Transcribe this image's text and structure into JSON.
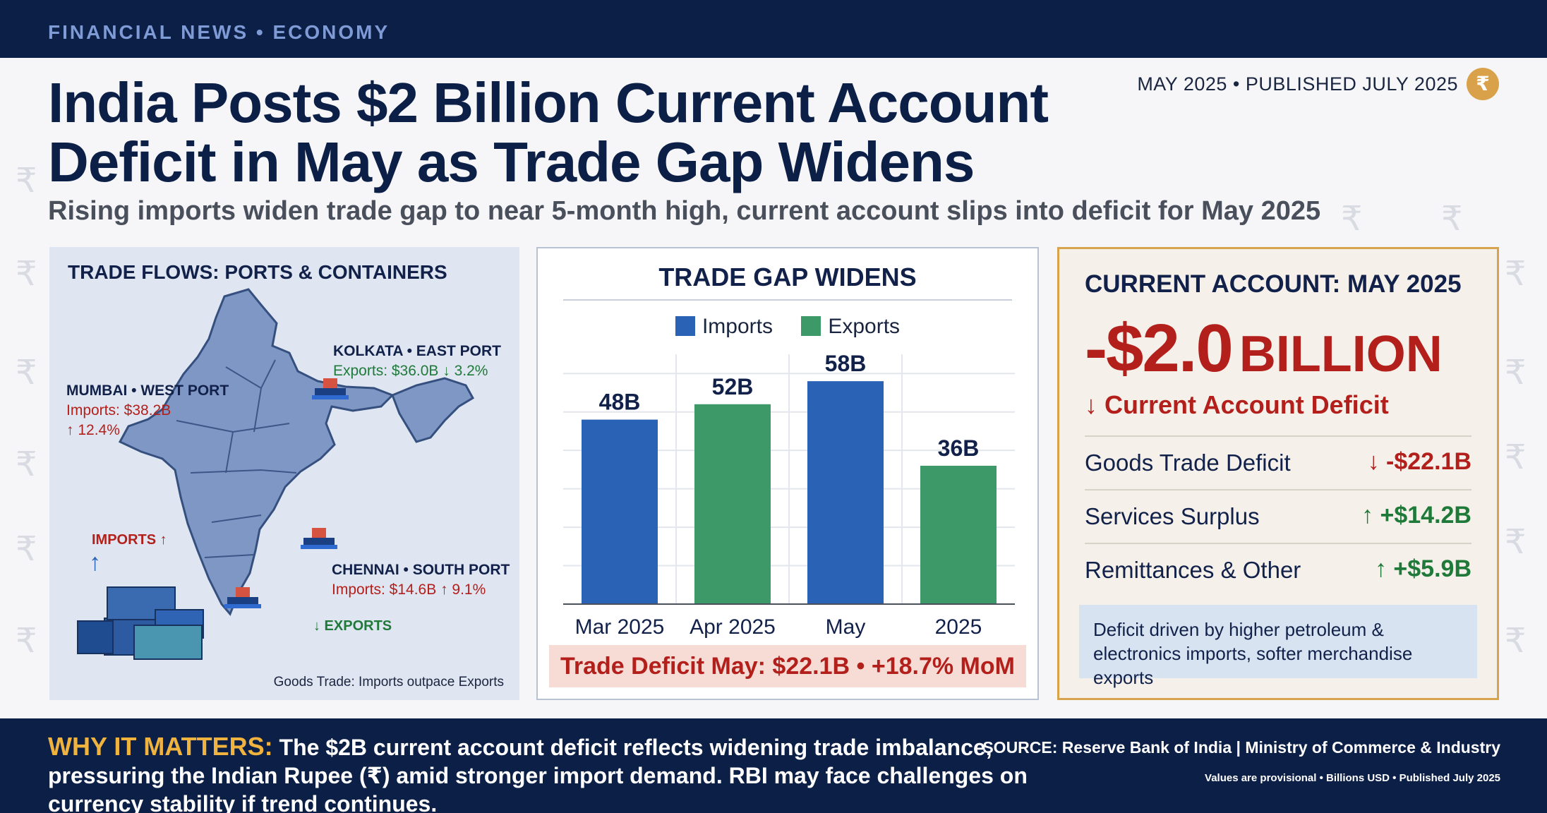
{
  "header": {
    "kicker": "FINANCIAL NEWS • ECONOMY",
    "dateline": "MAY 2025 • PUBLISHED JULY 2025",
    "badge_symbol": "₹"
  },
  "headline": {
    "line1": "India Posts $2 Billion Current Account",
    "line2": "Deficit in May as Trade Gap Widens",
    "subhead": "Rising imports widen trade gap to near 5-month high, current account slips into deficit for May 2025"
  },
  "map_panel": {
    "title": "TRADE FLOWS: PORTS & CONTAINERS",
    "kolkata": {
      "name": "KOLKATA • EAST PORT",
      "stat": "Exports: $36.0B ↓ 3.2%"
    },
    "mumbai": {
      "name": "MUMBAI • WEST PORT",
      "stat1": "Imports: $38.2B",
      "stat2": "↑ 12.4%"
    },
    "chennai": {
      "name": "CHENNAI • SOUTH PORT",
      "stat": "Imports: $14.6B ↑ 9.1%"
    },
    "imports_label": "IMPORTS ↑",
    "imports_arrow": "↑",
    "exports_label": "↓ EXPORTS",
    "footnote": "Goods Trade: Imports outpace Exports"
  },
  "chart_panel": {
    "footer": "Trade Deficit May: $22.1B • +18.7% MoM"
  },
  "chart_data": {
    "type": "bar",
    "title": "TRADE GAP WIDENS",
    "legend": [
      "Imports",
      "Exports"
    ],
    "categories": [
      "Mar 2025",
      "Apr 2025",
      "May",
      "2025"
    ],
    "bars": [
      {
        "category": "Mar 2025",
        "series": "Imports",
        "value": 48,
        "label": "48B"
      },
      {
        "category": "Apr 2025",
        "series": "Exports",
        "value": 52,
        "label": "52B"
      },
      {
        "category": "May",
        "series": "Imports",
        "value": 58,
        "label": "58B"
      },
      {
        "category": "2025",
        "series": "Exports",
        "value": 36,
        "label": "36B"
      }
    ],
    "ylim": [
      0,
      65
    ],
    "grid": true,
    "colors": {
      "Imports": "#2a62b6",
      "Exports": "#3d9a68"
    }
  },
  "ca_panel": {
    "title": "CURRENT ACCOUNT: MAY 2025",
    "big_number": "-$2.0",
    "big_unit": "BILLION",
    "subtitle": "↓ Current Account Deficit",
    "rows": [
      {
        "label": "Goods Trade Deficit",
        "value": "↓ -$22.1B",
        "tone": "red"
      },
      {
        "label": "Services Surplus",
        "value": "↑ +$14.2B",
        "tone": "green"
      },
      {
        "label": "Remittances & Other",
        "value": "↑ +$5.9B",
        "tone": "green"
      }
    ],
    "note": "Deficit driven by higher petroleum & electronics imports, softer merchandise exports"
  },
  "footer": {
    "why_label": "WHY IT MATTERS:",
    "why_text": " The $2B current account deficit reflects widening trade imbalance, pressuring the Indian Rupee (₹) amid stronger import demand. RBI may face challenges on currency stability if trend continues.",
    "source": "SOURCE: Reserve Bank of India | Ministry of Commerce & Industry",
    "fine": "Values are provisional • Billions USD • Published July 2025"
  },
  "colors": {
    "navy": "#0c1f47",
    "deficit_red": "#b3201c",
    "surplus_green": "#1f7a3a",
    "accent_gold": "#d7a34d"
  }
}
